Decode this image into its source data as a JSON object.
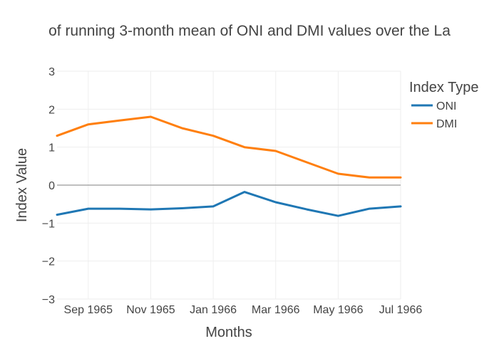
{
  "chart_data": {
    "type": "line",
    "title": "of running 3-month mean of ONI and DMI values over the La",
    "xlabel": "Months",
    "ylabel": "Index Value",
    "x": [
      "1965-08",
      "1965-09",
      "1965-10",
      "1965-11",
      "1965-12",
      "1966-01",
      "1966-02",
      "1966-03",
      "1966-04",
      "1966-05",
      "1966-06",
      "1966-07"
    ],
    "x_ticks": [
      {
        "value": "1965-09",
        "label": "Sep 1965"
      },
      {
        "value": "1965-11",
        "label": "Nov 1965"
      },
      {
        "value": "1966-01",
        "label": "Jan 1966"
      },
      {
        "value": "1966-03",
        "label": "Mar 1966"
      },
      {
        "value": "1966-05",
        "label": "May 1966"
      },
      {
        "value": "1966-07",
        "label": "Jul 1966"
      }
    ],
    "ylim": [
      -3,
      3
    ],
    "y_ticks": [
      {
        "value": 3,
        "label": "3"
      },
      {
        "value": 2,
        "label": "2"
      },
      {
        "value": 1,
        "label": "1"
      },
      {
        "value": 0,
        "label": "0"
      },
      {
        "value": -1,
        "label": "−1"
      },
      {
        "value": -2,
        "label": "−2"
      },
      {
        "value": -3,
        "label": "−3"
      }
    ],
    "grid": true,
    "legend": {
      "title": "Index Type",
      "position": "top-right"
    },
    "series": [
      {
        "name": "ONI",
        "color": "#1f77b4",
        "values": [
          -0.78,
          -0.62,
          -0.62,
          -0.64,
          -0.61,
          -0.56,
          -0.18,
          -0.45,
          -0.64,
          -0.81,
          -0.62,
          -0.56
        ]
      },
      {
        "name": "DMI",
        "color": "#ff7f0e",
        "values": [
          1.3,
          1.6,
          1.7,
          1.8,
          1.5,
          1.3,
          1.0,
          0.9,
          0.6,
          0.3,
          0.2,
          0.2
        ]
      }
    ]
  }
}
